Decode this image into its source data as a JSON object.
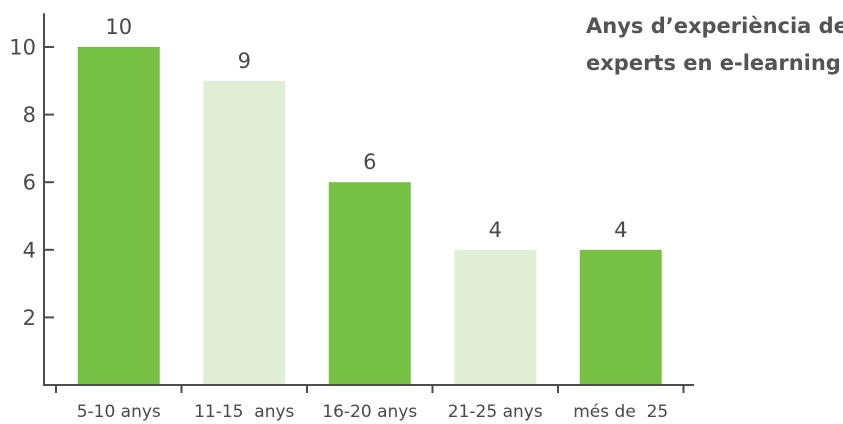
{
  "chart_data": {
    "type": "bar",
    "title_lines": [
      "Anys d’experiència dels",
      "experts en e-learning"
    ],
    "categories": [
      "5-10 anys",
      "11-15  anys",
      "16-20 anys",
      "21-25 anys",
      "més de  25"
    ],
    "values": [
      10,
      9,
      6,
      4,
      4
    ],
    "data_labels": [
      "10",
      "9",
      "6",
      "4",
      "4"
    ],
    "yticks": [
      "2",
      "4",
      "6",
      "8",
      "10"
    ],
    "ylim": [
      0,
      11
    ],
    "xlabel": "",
    "ylabel": "",
    "grid": false,
    "bar_colors": [
      "#76c043",
      "#e1efd6",
      "#76c043",
      "#e1efd6",
      "#76c043"
    ],
    "axis_color": "#4d4d4d"
  }
}
